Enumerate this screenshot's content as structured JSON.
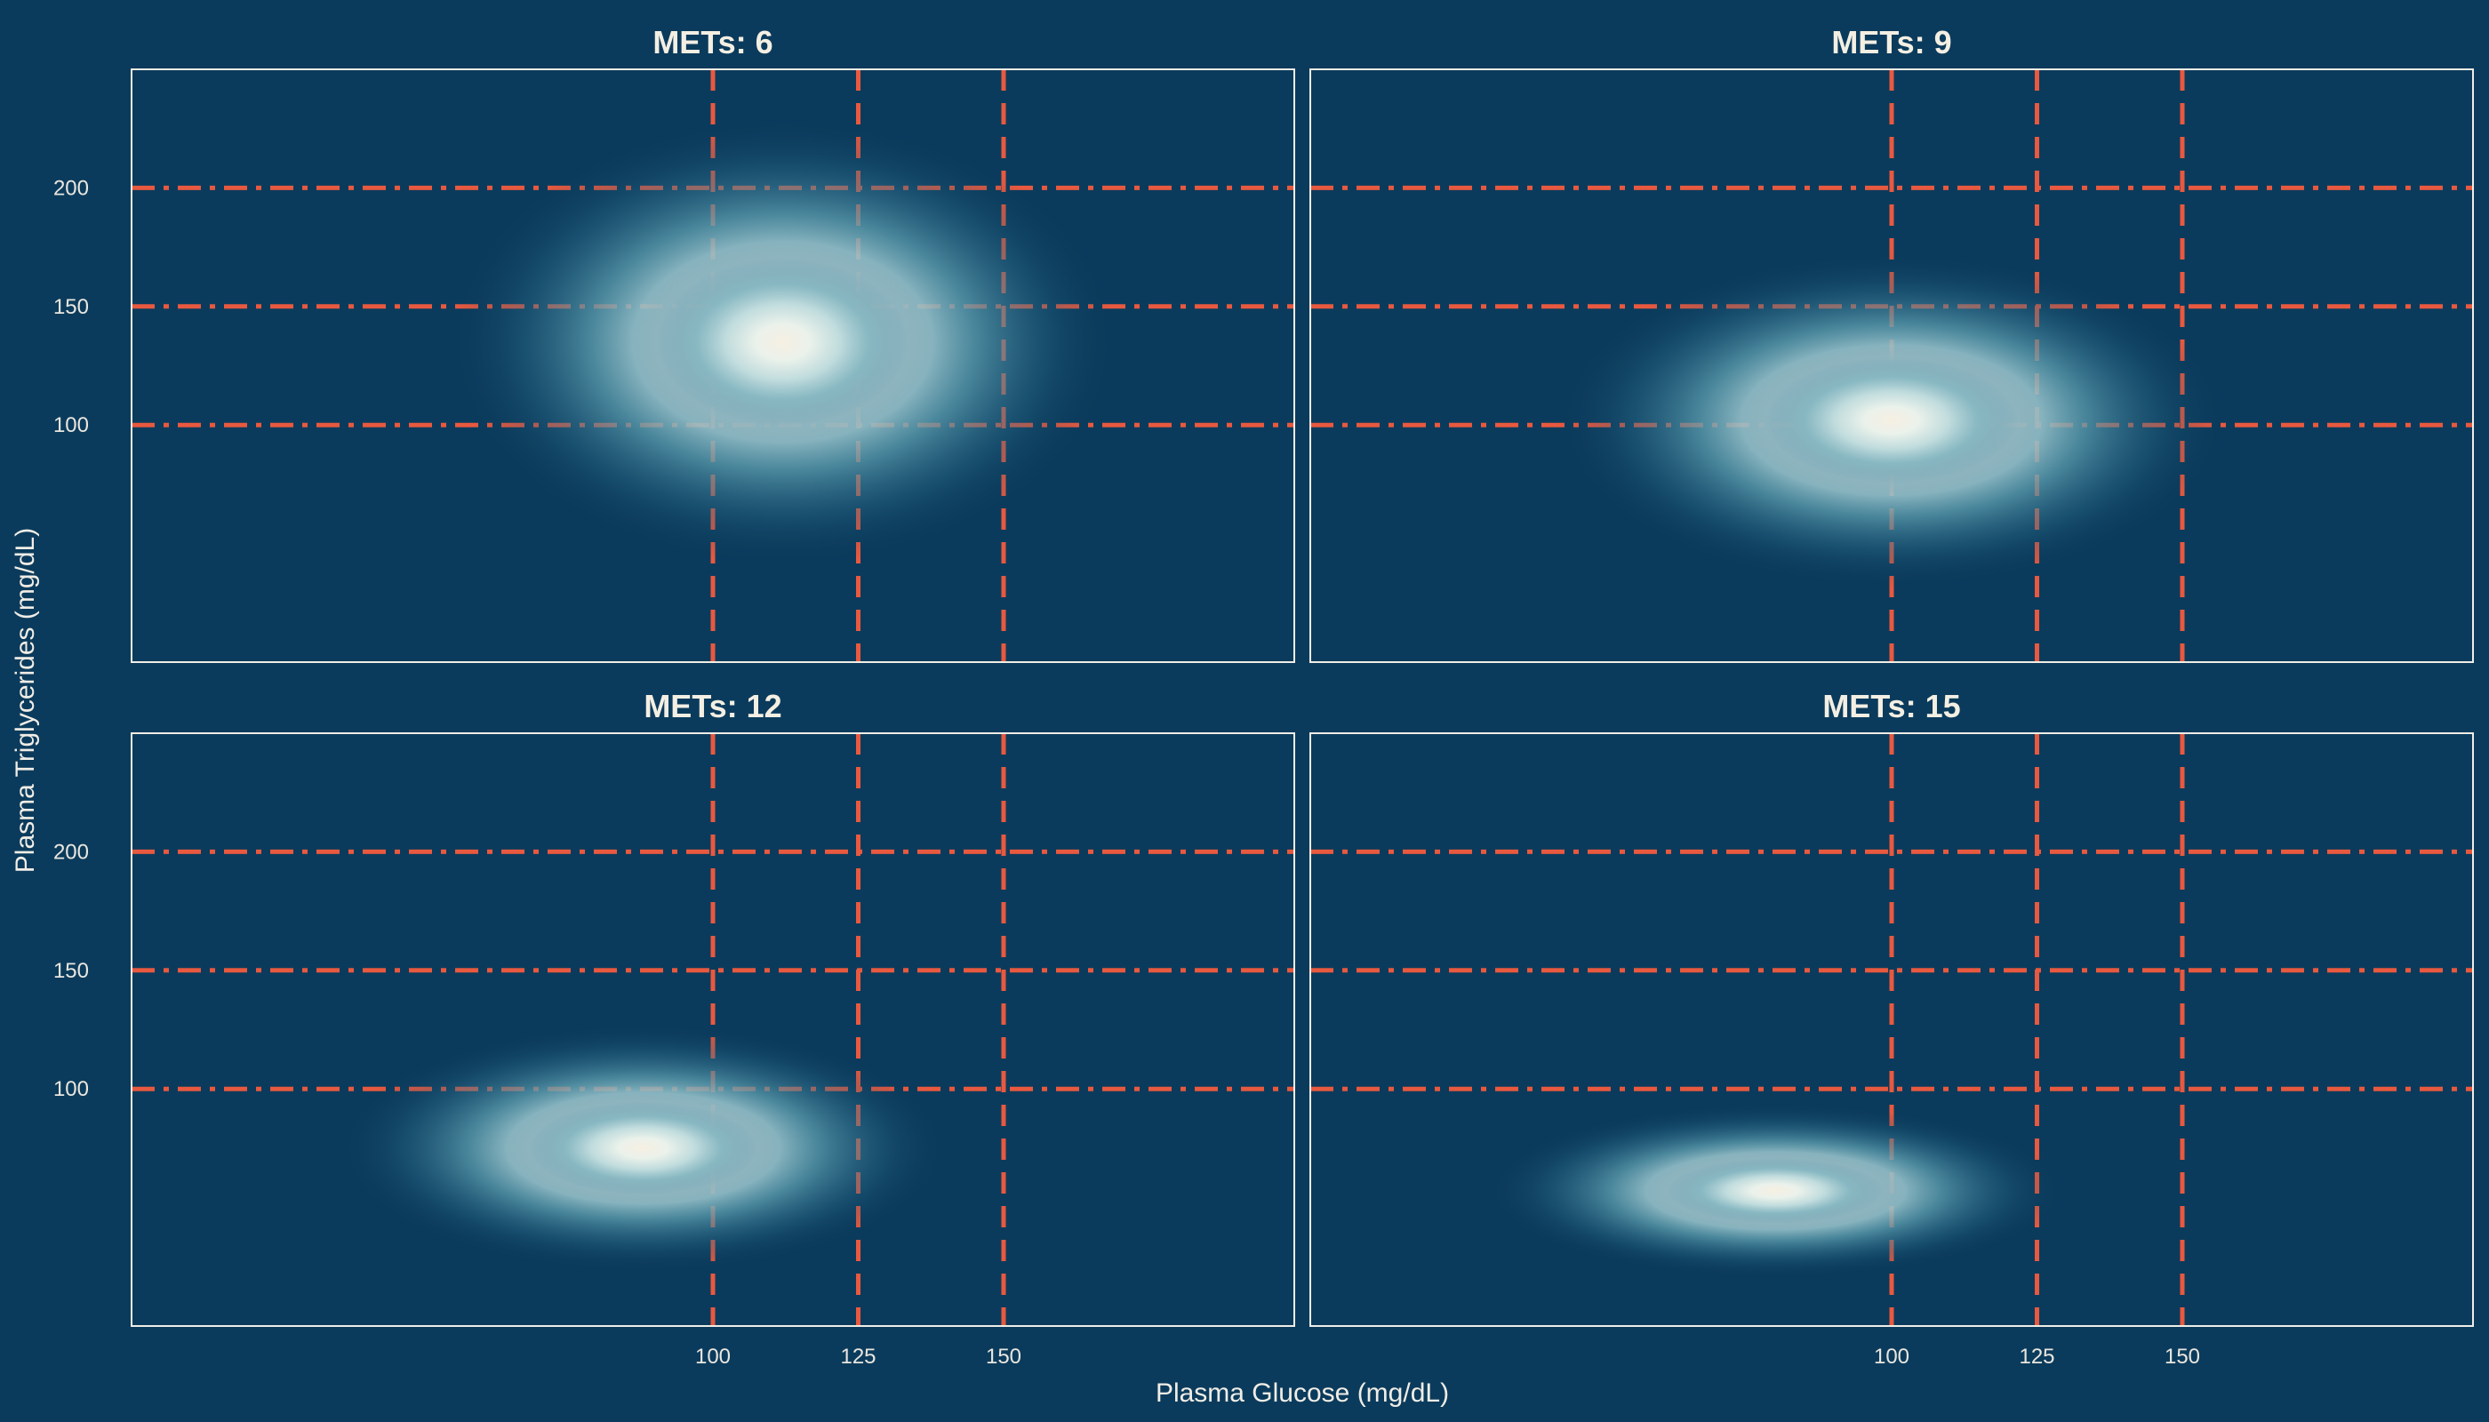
{
  "chart_data": {
    "type": "heatmap",
    "subtype": "2d density, small multiples (2x2 facets)",
    "xlabel": "Plasma Glucose (mg/dL)",
    "ylabel": "Plasma Triglycerides (mg/dL)",
    "xlim": [
      0,
      200
    ],
    "ylim": [
      0,
      250
    ],
    "x_ticks": [
      100,
      125,
      150
    ],
    "y_ticks": [
      100,
      150,
      200
    ],
    "reference_lines": {
      "vertical_x": [
        100,
        125,
        150
      ],
      "vertical_style": "dashed",
      "horizontal_y": [
        100,
        150,
        200
      ],
      "horizontal_style": "dot-dash",
      "color": "#e8593f"
    },
    "grid": false,
    "legend": "none",
    "colors": {
      "background": "#0b3b5c",
      "density_low": "#0b3b5c",
      "density_mid": "#5e9fb0",
      "density_high": "#f6efe2",
      "panel_border": "#f0ede6"
    },
    "panels": [
      {
        "title": "METs: 6",
        "peak_x": 112,
        "peak_y": 135,
        "spread_x": 22,
        "spread_y": 36
      },
      {
        "title": "METs: 9",
        "peak_x": 100,
        "peak_y": 102,
        "spread_x": 22,
        "spread_y": 27
      },
      {
        "title": "METs: 12",
        "peak_x": 88,
        "peak_y": 75,
        "spread_x": 20,
        "spread_y": 20
      },
      {
        "title": "METs: 15",
        "peak_x": 80,
        "peak_y": 57,
        "spread_x": 19,
        "spread_y": 14
      }
    ]
  }
}
